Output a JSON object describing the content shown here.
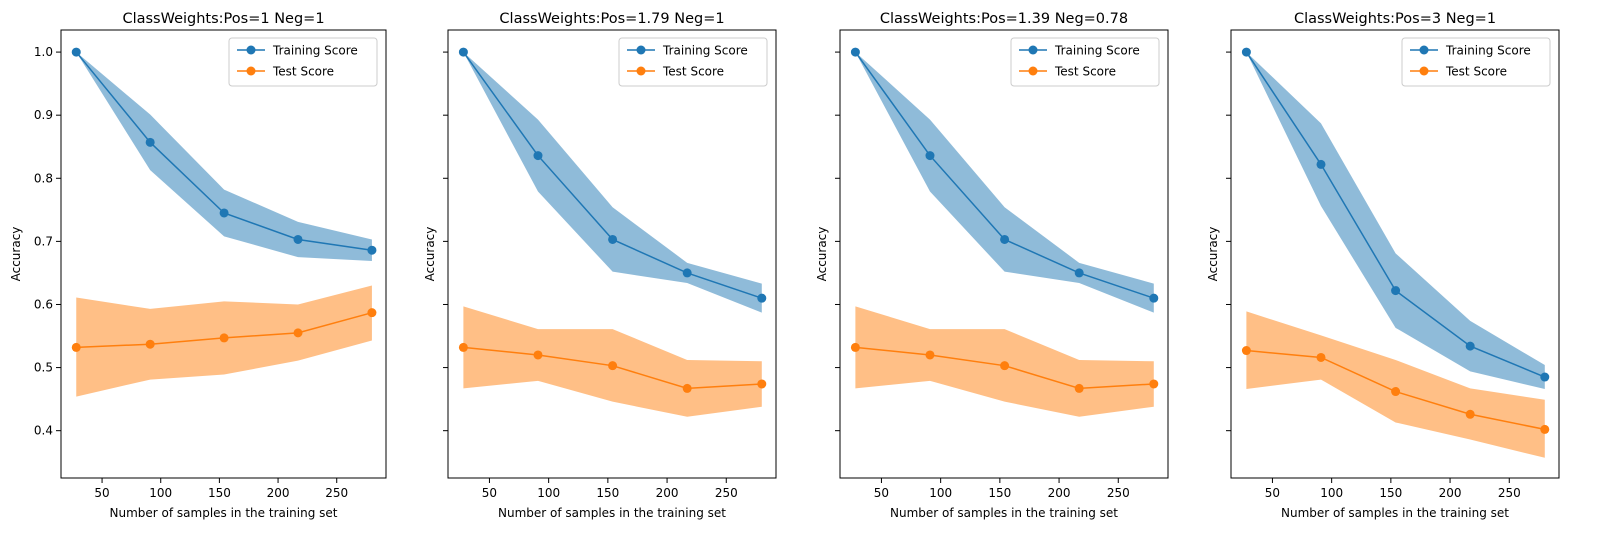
{
  "chart_data": [
    {
      "type": "line",
      "title": "ClassWeights:Pos=1 Neg=1",
      "xlabel": "Number of samples in the training set",
      "ylabel": "Accuracy",
      "xlim": [
        15,
        292
      ],
      "ylim": [
        0.325,
        1.035
      ],
      "xticks": [
        50,
        100,
        150,
        200,
        250
      ],
      "yticks": [
        0.4,
        0.5,
        0.6,
        0.7,
        0.8,
        0.9,
        1.0
      ],
      "ytick_labels_visible": true,
      "legend_position": "upper right",
      "x": [
        28,
        91,
        154,
        217,
        280
      ],
      "series": [
        {
          "name": "Training Score",
          "color": "#1f77b4",
          "band_color": "#1f77b4",
          "values": [
            1.0,
            0.857,
            0.745,
            0.703,
            0.686
          ],
          "lower": [
            1.0,
            0.813,
            0.708,
            0.675,
            0.669
          ],
          "upper": [
            1.0,
            0.901,
            0.782,
            0.731,
            0.703
          ]
        },
        {
          "name": "Test Score",
          "color": "#ff7f0e",
          "band_color": "#ff7f0e",
          "values": [
            0.532,
            0.537,
            0.547,
            0.555,
            0.587
          ],
          "lower": [
            0.454,
            0.481,
            0.489,
            0.511,
            0.543
          ],
          "upper": [
            0.611,
            0.593,
            0.605,
            0.6,
            0.63
          ]
        }
      ]
    },
    {
      "type": "line",
      "title": "ClassWeights:Pos=1.79 Neg=1",
      "xlabel": "Number of samples in the training set",
      "ylabel": "Accuracy",
      "xlim": [
        15,
        292
      ],
      "ylim": [
        0.325,
        1.035
      ],
      "xticks": [
        50,
        100,
        150,
        200,
        250
      ],
      "yticks": [
        0.4,
        0.5,
        0.6,
        0.7,
        0.8,
        0.9,
        1.0
      ],
      "ytick_labels_visible": false,
      "legend_position": "upper right",
      "x": [
        28,
        91,
        154,
        217,
        280
      ],
      "series": [
        {
          "name": "Training Score",
          "color": "#1f77b4",
          "band_color": "#1f77b4",
          "values": [
            1.0,
            0.836,
            0.703,
            0.65,
            0.61
          ],
          "lower": [
            1.0,
            0.779,
            0.652,
            0.634,
            0.587
          ],
          "upper": [
            1.0,
            0.893,
            0.754,
            0.666,
            0.633
          ]
        },
        {
          "name": "Test Score",
          "color": "#ff7f0e",
          "band_color": "#ff7f0e",
          "values": [
            0.532,
            0.52,
            0.503,
            0.467,
            0.474
          ],
          "lower": [
            0.467,
            0.479,
            0.446,
            0.422,
            0.438
          ],
          "upper": [
            0.597,
            0.561,
            0.561,
            0.512,
            0.51
          ]
        }
      ]
    },
    {
      "type": "line",
      "title": "ClassWeights:Pos=1.39 Neg=0.78",
      "xlabel": "Number of samples in the training set",
      "ylabel": "Accuracy",
      "xlim": [
        15,
        292
      ],
      "ylim": [
        0.325,
        1.035
      ],
      "xticks": [
        50,
        100,
        150,
        200,
        250
      ],
      "yticks": [
        0.4,
        0.5,
        0.6,
        0.7,
        0.8,
        0.9,
        1.0
      ],
      "ytick_labels_visible": false,
      "legend_position": "upper right",
      "x": [
        28,
        91,
        154,
        217,
        280
      ],
      "series": [
        {
          "name": "Training Score",
          "color": "#1f77b4",
          "band_color": "#1f77b4",
          "values": [
            1.0,
            0.836,
            0.703,
            0.65,
            0.61
          ],
          "lower": [
            1.0,
            0.779,
            0.652,
            0.634,
            0.587
          ],
          "upper": [
            1.0,
            0.893,
            0.754,
            0.666,
            0.633
          ]
        },
        {
          "name": "Test Score",
          "color": "#ff7f0e",
          "band_color": "#ff7f0e",
          "values": [
            0.532,
            0.52,
            0.503,
            0.467,
            0.474
          ],
          "lower": [
            0.467,
            0.479,
            0.446,
            0.422,
            0.438
          ],
          "upper": [
            0.597,
            0.561,
            0.561,
            0.512,
            0.51
          ]
        }
      ]
    },
    {
      "type": "line",
      "title": "ClassWeights:Pos=3 Neg=1",
      "xlabel": "Number of samples in the training set",
      "ylabel": "Accuracy",
      "xlim": [
        15,
        292
      ],
      "ylim": [
        0.325,
        1.035
      ],
      "xticks": [
        50,
        100,
        150,
        200,
        250
      ],
      "yticks": [
        0.4,
        0.5,
        0.6,
        0.7,
        0.8,
        0.9,
        1.0
      ],
      "ytick_labels_visible": false,
      "legend_position": "upper right",
      "x": [
        28,
        91,
        154,
        217,
        280
      ],
      "series": [
        {
          "name": "Training Score",
          "color": "#1f77b4",
          "band_color": "#1f77b4",
          "values": [
            1.0,
            0.822,
            0.622,
            0.534,
            0.485
          ],
          "lower": [
            1.0,
            0.756,
            0.563,
            0.494,
            0.466
          ],
          "upper": [
            1.0,
            0.887,
            0.681,
            0.574,
            0.504
          ]
        },
        {
          "name": "Test Score",
          "color": "#ff7f0e",
          "band_color": "#ff7f0e",
          "values": [
            0.527,
            0.516,
            0.462,
            0.426,
            0.402
          ],
          "lower": [
            0.466,
            0.481,
            0.413,
            0.386,
            0.357
          ],
          "upper": [
            0.589,
            0.551,
            0.512,
            0.467,
            0.449
          ]
        }
      ]
    }
  ]
}
